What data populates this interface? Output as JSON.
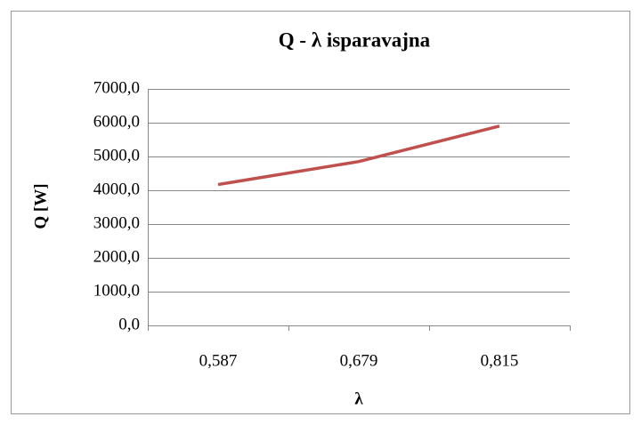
{
  "chart_data": {
    "type": "line",
    "title": "Q - λ isparavajna",
    "x_label": "λ",
    "y_label": "Q [W]",
    "categories": [
      "0,587",
      "0,679",
      "0,815"
    ],
    "series": [
      {
        "name": "Q",
        "color": "#c0504d",
        "values": [
          4170,
          4850,
          5900
        ]
      }
    ],
    "ylim": [
      0,
      7000
    ],
    "yticks": [
      {
        "value": 0,
        "label": "0,0"
      },
      {
        "value": 1000,
        "label": "1000,0"
      },
      {
        "value": 2000,
        "label": "2000,0"
      },
      {
        "value": 3000,
        "label": "3000,0"
      },
      {
        "value": 4000,
        "label": "4000,0"
      },
      {
        "value": 5000,
        "label": "5000,0"
      },
      {
        "value": 6000,
        "label": "6000,0"
      },
      {
        "value": 7000,
        "label": "7000,0"
      }
    ],
    "grid": true
  }
}
